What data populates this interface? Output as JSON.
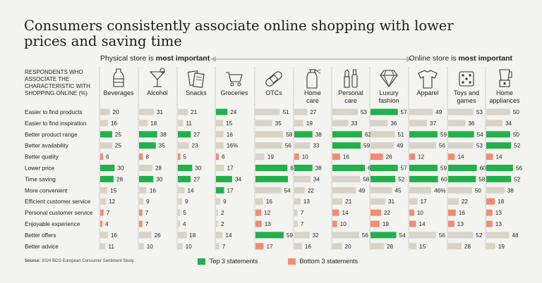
{
  "title": "Consumers consistently associate online shopping with lower prices and saving time",
  "axis": {
    "left_prefix": "Physical store is ",
    "left_bold": "most important",
    "right_prefix": "Online store is ",
    "right_bold": "most important"
  },
  "respondents_label": "Respondents who associate the characteristic with shopping online (%)",
  "source": {
    "label": "Source:",
    "text": " 2024 BCG European Consumer Sentiment Study."
  },
  "legend": {
    "top": "Top 3 statements",
    "bottom": "Bottom 3 statements"
  },
  "colors": {
    "neutral": "#d8d3c9",
    "top": "#21b04b",
    "bottom": "#f08c74",
    "divider": "#9a9a9a",
    "text": "#222222"
  },
  "chart_data": {
    "type": "table",
    "categories": [
      {
        "label": [
          "Beverages"
        ],
        "icon": "bottle-icon"
      },
      {
        "label": [
          "Alcohol"
        ],
        "icon": "cocktail-icon"
      },
      {
        "label": [
          "Snacks"
        ],
        "icon": "snack-bag-icon"
      },
      {
        "label": [
          "Groceries"
        ],
        "icon": "shopping-cart-icon"
      },
      {
        "label": [
          "OTCs"
        ],
        "icon": "bandage-icon"
      },
      {
        "label": [
          "Home",
          "care"
        ],
        "icon": "spray-bottle-icon"
      },
      {
        "label": [
          "Personal",
          "care"
        ],
        "icon": "cosmetics-icon"
      },
      {
        "label": [
          "Luxury",
          "fashion"
        ],
        "icon": "diamond-icon"
      },
      {
        "label": [
          "Apparel"
        ],
        "icon": "t-shirt-icon"
      },
      {
        "label": [
          "Toys and",
          "games"
        ],
        "icon": "dice-icon"
      },
      {
        "label": [
          "Home",
          "appliances"
        ],
        "icon": "blender-icon"
      }
    ],
    "rows": [
      {
        "label": "Easier to find products",
        "values": [
          "20",
          "31",
          "21",
          "24",
          "51",
          "27",
          "53",
          "57",
          "49",
          "53",
          "50"
        ],
        "status": [
          "n",
          "n",
          "n",
          "t",
          "n",
          "n",
          "n",
          "t",
          "n",
          "n",
          "n"
        ]
      },
      {
        "label": "Easier to find inspiration",
        "values": [
          "16",
          "18",
          "11",
          "15",
          "35",
          "19",
          "33",
          "36",
          "37",
          "36",
          "34"
        ],
        "status": [
          "n",
          "n",
          "n",
          "n",
          "n",
          "n",
          "n",
          "n",
          "n",
          "n",
          "n"
        ]
      },
      {
        "label": "Better product range",
        "values": [
          "25",
          "38",
          "27",
          "16",
          "58",
          "38",
          "62",
          "51",
          "59",
          "54",
          "50"
        ],
        "status": [
          "t",
          "t",
          "t",
          "n",
          "n",
          "t",
          "t",
          "n",
          "t",
          "t",
          "t"
        ]
      },
      {
        "label": "Better availability",
        "values": [
          "25",
          "35",
          "23",
          "16%",
          "56",
          "33",
          "59",
          "49",
          "56",
          "53",
          "52"
        ],
        "status": [
          "n",
          "t",
          "n",
          "n",
          "n",
          "n",
          "t",
          "n",
          "n",
          "n",
          "t"
        ]
      },
      {
        "label": "Better quality",
        "values": [
          "6",
          "8",
          "5",
          "6",
          "19",
          "10",
          "16",
          "26",
          "12",
          "14",
          "14"
        ],
        "status": [
          "b",
          "b",
          "b",
          "b",
          "n",
          "b",
          "b",
          "b",
          "b",
          "b",
          "b"
        ]
      },
      {
        "label": "Lower price",
        "values": [
          "30",
          "28",
          "30",
          "17",
          "67",
          "38",
          "68",
          "57",
          "59",
          "60",
          "56"
        ],
        "status": [
          "t",
          "n",
          "t",
          "n",
          "t",
          "t",
          "t",
          "t",
          "t",
          "t",
          "t"
        ]
      },
      {
        "label": "Time saving",
        "values": [
          "28",
          "30",
          "27",
          "34",
          "",
          "34",
          "58",
          "52",
          "60",
          "58",
          "52"
        ],
        "status": [
          "t",
          "t",
          "t",
          "t",
          "t",
          "n",
          "n",
          "t",
          "t",
          "t",
          "t"
        ]
      },
      {
        "label": "More convenient",
        "values": [
          "15",
          "16",
          "14",
          "17",
          "54",
          "22",
          "49",
          "45",
          "46%",
          "50",
          "38"
        ],
        "status": [
          "n",
          "n",
          "n",
          "t",
          "n",
          "n",
          "n",
          "n",
          "n",
          "n",
          "n"
        ]
      },
      {
        "label": "Efficient customer service",
        "values": [
          "12",
          "9",
          "9",
          "9",
          "16",
          "13",
          "21",
          "31",
          "17",
          "22",
          "18"
        ],
        "status": [
          "n",
          "n",
          "n",
          "n",
          "n",
          "n",
          "n",
          "n",
          "n",
          "n",
          "b"
        ]
      },
      {
        "label": "Personal customer service",
        "values": [
          "7",
          "7",
          "5",
          "2",
          "12",
          "7",
          "14",
          "22",
          "10",
          "16",
          "13"
        ],
        "status": [
          "b",
          "b",
          "n",
          "n",
          "b",
          "n",
          "b",
          "b",
          "b",
          "b",
          "b"
        ]
      },
      {
        "label": "Enjoyable experience",
        "values": [
          "4",
          "7",
          "4",
          "2",
          "13",
          "7",
          "10",
          "19",
          "14",
          "13",
          "13"
        ],
        "status": [
          "b",
          "b",
          "n",
          "n",
          "b",
          "n",
          "b",
          "b",
          "b",
          "b",
          "b"
        ]
      },
      {
        "label": "Better offers",
        "values": [
          "16",
          "26",
          "18",
          "14",
          "59",
          "32",
          "56",
          "54",
          "56",
          "52",
          "48"
        ],
        "status": [
          "n",
          "n",
          "n",
          "n",
          "t",
          "n",
          "n",
          "t",
          "n",
          "n",
          "n"
        ]
      },
      {
        "label": "Better advice",
        "values": [
          "11",
          "10",
          "10",
          "7",
          "17",
          "16",
          "20",
          "28",
          "15",
          "28",
          "19"
        ],
        "status": [
          "n",
          "n",
          "n",
          "n",
          "b",
          "n",
          "n",
          "n",
          "n",
          "n",
          "n"
        ]
      }
    ]
  }
}
